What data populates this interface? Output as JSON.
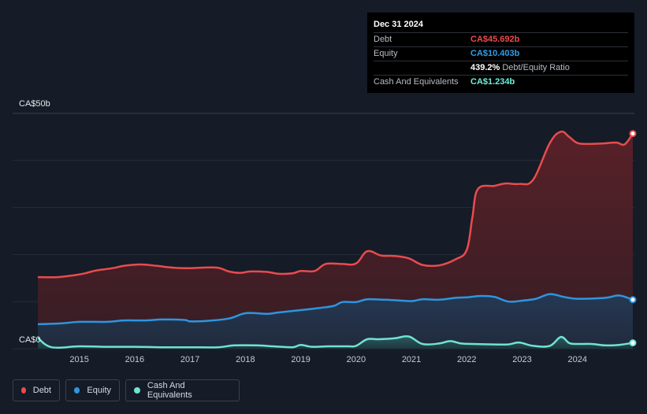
{
  "tooltip": {
    "date": "Dec 31 2024",
    "rows": [
      {
        "label": "Debt",
        "value": "CA$45.692b",
        "color": "#f0494b",
        "suffix": ""
      },
      {
        "label": "Equity",
        "value": "CA$10.403b",
        "color": "#2f9fea",
        "suffix": ""
      },
      {
        "label": "",
        "value": "439.2%",
        "color": "#ffffff",
        "suffix": "Debt/Equity Ratio"
      },
      {
        "label": "Cash And Equivalents",
        "value": "CA$1.234b",
        "color": "#6ff0dc",
        "suffix": ""
      }
    ]
  },
  "legend": [
    {
      "label": "Debt",
      "color": "#e84c4e"
    },
    {
      "label": "Equity",
      "color": "#2e95e0"
    },
    {
      "label": "Cash And Equivalents",
      "color": "#6fe3d2"
    }
  ],
  "chart_data": {
    "type": "area",
    "y_top_label": "CA$50b",
    "y_bottom_label": "CA$0",
    "ylim": [
      0,
      50
    ],
    "xlim": [
      2014.25,
      2025.0
    ],
    "x_ticks": [
      2015,
      2016,
      2017,
      2018,
      2019,
      2020,
      2021,
      2022,
      2023,
      2024
    ],
    "x_tick_labels": [
      "2015",
      "2016",
      "2017",
      "2018",
      "2019",
      "2020",
      "2021",
      "2022",
      "2023",
      "2024"
    ],
    "grid": true,
    "series": [
      {
        "name": "Debt",
        "color": "#e84c4e",
        "x": [
          2014.25,
          2014.6,
          2014.9,
          2015.1,
          2015.3,
          2015.6,
          2015.8,
          2016.1,
          2016.4,
          2016.7,
          2017.0,
          2017.2,
          2017.5,
          2017.7,
          2017.9,
          2018.1,
          2018.4,
          2018.6,
          2018.85,
          2019.0,
          2019.25,
          2019.45,
          2019.75,
          2020.0,
          2020.2,
          2020.45,
          2020.7,
          2020.95,
          2021.2,
          2021.5,
          2021.8,
          2022.0,
          2022.1,
          2022.2,
          2022.5,
          2022.7,
          2022.95,
          2023.2,
          2023.5,
          2023.7,
          2023.85,
          2024.0,
          2024.2,
          2024.45,
          2024.7,
          2024.85,
          2025.0
        ],
        "y": [
          15.2,
          15.2,
          15.6,
          16.0,
          16.6,
          17.1,
          17.6,
          17.9,
          17.6,
          17.2,
          17.1,
          17.2,
          17.2,
          16.4,
          16.1,
          16.4,
          16.3,
          15.9,
          16.0,
          16.5,
          16.5,
          18.0,
          18.0,
          18.1,
          20.7,
          19.8,
          19.7,
          19.2,
          17.8,
          17.7,
          19.0,
          21.0,
          27.8,
          33.9,
          34.6,
          35.1,
          35.0,
          35.9,
          43.7,
          46.1,
          45.0,
          43.7,
          43.5,
          43.6,
          43.8,
          43.4,
          45.7
        ]
      },
      {
        "name": "Equity",
        "color": "#2e95e0",
        "x": [
          2014.25,
          2014.7,
          2015.0,
          2015.5,
          2015.8,
          2016.2,
          2016.5,
          2016.9,
          2017.0,
          2017.3,
          2017.7,
          2017.95,
          2018.1,
          2018.4,
          2018.6,
          2019.0,
          2019.3,
          2019.6,
          2019.75,
          2020.0,
          2020.2,
          2020.5,
          2020.7,
          2021.0,
          2021.2,
          2021.5,
          2021.8,
          2022.0,
          2022.25,
          2022.5,
          2022.75,
          2023.0,
          2023.25,
          2023.5,
          2023.75,
          2024.0,
          2024.5,
          2024.75,
          2025.0
        ],
        "y": [
          5.2,
          5.4,
          5.7,
          5.7,
          6.0,
          6.0,
          6.2,
          6.1,
          5.8,
          5.9,
          6.4,
          7.4,
          7.6,
          7.4,
          7.7,
          8.2,
          8.6,
          9.1,
          9.9,
          9.9,
          10.5,
          10.4,
          10.3,
          10.1,
          10.5,
          10.4,
          10.8,
          10.9,
          11.2,
          11.0,
          10.0,
          10.2,
          10.6,
          11.6,
          11.0,
          10.6,
          10.8,
          11.3,
          10.4
        ]
      },
      {
        "name": "Cash And Equivalents",
        "color": "#6fe3d2",
        "x": [
          2014.25,
          2014.5,
          2015.0,
          2015.5,
          2016.0,
          2016.5,
          2017.0,
          2017.5,
          2017.8,
          2018.2,
          2018.5,
          2018.85,
          2019.0,
          2019.2,
          2019.5,
          2019.85,
          2020.0,
          2020.2,
          2020.4,
          2020.7,
          2020.95,
          2021.2,
          2021.5,
          2021.7,
          2021.9,
          2022.1,
          2022.5,
          2022.75,
          2022.95,
          2023.2,
          2023.5,
          2023.7,
          2023.85,
          2024.0,
          2024.25,
          2024.5,
          2024.75,
          2025.0
        ],
        "y": [
          2.3,
          0.3,
          0.5,
          0.4,
          0.4,
          0.3,
          0.3,
          0.3,
          0.7,
          0.7,
          0.5,
          0.3,
          0.8,
          0.4,
          0.5,
          0.5,
          0.6,
          2.0,
          2.0,
          2.2,
          2.6,
          1.0,
          1.1,
          1.6,
          1.1,
          1.0,
          0.9,
          0.9,
          1.3,
          0.6,
          0.6,
          2.5,
          1.2,
          1.0,
          1.0,
          0.7,
          0.8,
          1.234
        ]
      }
    ]
  }
}
